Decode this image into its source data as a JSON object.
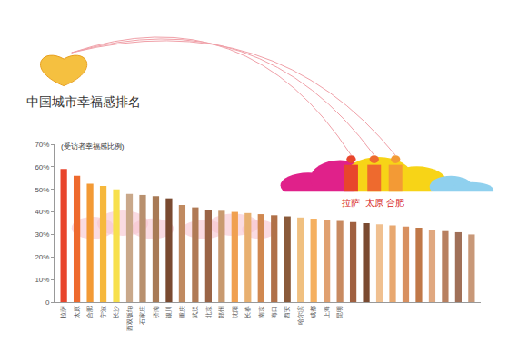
{
  "chart_data": {
    "type": "bar",
    "title": "中国城市幸福感排名",
    "y_label": "(受访者幸福感比例)",
    "annotations": [
      "拉萨",
      "太原",
      "合肥"
    ],
    "categories": [
      "拉萨",
      "太原",
      "合肥",
      "宁波",
      "长沙",
      "西双版纳",
      "石家庄",
      "济南",
      "银川",
      "重庆",
      "武汉",
      "北京",
      "郑州",
      "沈阳",
      "长春",
      "南京",
      "海口",
      "西安",
      "哈尔滨",
      "成都",
      "上海",
      "昆明",
      null,
      null,
      null,
      null,
      null,
      null,
      null,
      null,
      null,
      null
    ],
    "values": [
      59,
      56,
      52.5,
      51.5,
      50,
      48,
      47.5,
      47,
      46,
      43,
      42,
      41,
      40.5,
      40,
      39.5,
      39,
      38.5,
      38,
      37.5,
      37,
      36.5,
      36,
      35.5,
      35,
      34.5,
      34,
      33.5,
      33,
      32,
      31.5,
      31,
      30
    ],
    "colors": [
      "#e8452c",
      "#ee6a2e",
      "#f39a35",
      "#f6b83c",
      "#f7e04c",
      "#c9a88a",
      "#b8906e",
      "#a87a55",
      "#7a4a30",
      "#c08a60",
      "#b07a55",
      "#9a6446",
      "#c89a70",
      "#f0a050",
      "#e8b070",
      "#d08850",
      "#b07048",
      "#8a5a3a",
      "#f0c080",
      "#f5b060",
      "#e0a070",
      "#c88a60",
      "#a06040",
      "#7a4a30",
      "#f0c090",
      "#e8a870",
      "#d89060",
      "#c07848",
      "#e0a880",
      "#b88060",
      "#a07058",
      "#c89878"
    ],
    "ylim": [
      0,
      70
    ],
    "yticks": [
      {
        "value": 0,
        "label": "0"
      },
      {
        "value": 10,
        "label": "10%"
      },
      {
        "value": 20,
        "label": "20%"
      },
      {
        "value": 30,
        "label": "30%"
      },
      {
        "value": 40,
        "label": "40%"
      },
      {
        "value": 50,
        "label": "50%"
      },
      {
        "value": 60,
        "label": "60%"
      },
      {
        "value": 70,
        "label": "70%"
      }
    ],
    "grid": false
  }
}
